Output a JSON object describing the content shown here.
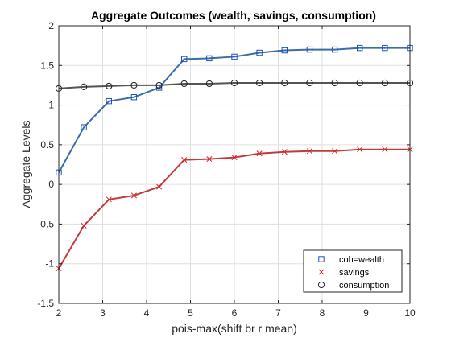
{
  "chart_data": {
    "type": "line",
    "title": "Aggregate Outcomes (wealth, savings, consumption)",
    "xlabel": "pois-max(shift br r mean)",
    "ylabel": "Aggregate Levels",
    "xlim": [
      2,
      10
    ],
    "ylim": [
      -1.5,
      2
    ],
    "xticks": [
      2,
      3,
      4,
      5,
      6,
      7,
      8,
      9,
      10
    ],
    "yticks": [
      -1.5,
      -1,
      -0.5,
      0,
      0.5,
      1,
      1.5,
      2
    ],
    "ytick_labels": [
      "-1.5",
      "-1",
      "-0.5",
      "0",
      "0.5",
      "1",
      "1.5",
      "2"
    ],
    "grid": true,
    "legend_position": "bottom-right",
    "x": [
      2,
      2.571,
      3.143,
      3.714,
      4.286,
      4.857,
      5.429,
      6,
      6.571,
      7.143,
      7.714,
      8.286,
      8.857,
      9.429,
      10
    ],
    "series": [
      {
        "name": "coh=wealth",
        "marker": "square",
        "line_color": "#3a6ea5",
        "marker_color": "#1f4fbf",
        "values": [
          0.15,
          0.72,
          1.05,
          1.1,
          1.22,
          1.58,
          1.59,
          1.61,
          1.66,
          1.69,
          1.7,
          1.7,
          1.72,
          1.72,
          1.72
        ]
      },
      {
        "name": "savings",
        "marker": "x",
        "line_color": "#c23b3b",
        "marker_color": "#d62728",
        "values": [
          -1.06,
          -0.52,
          -0.19,
          -0.14,
          -0.03,
          0.31,
          0.32,
          0.34,
          0.39,
          0.41,
          0.42,
          0.42,
          0.44,
          0.44,
          0.44
        ]
      },
      {
        "name": "consumption",
        "marker": "circle",
        "line_color": "#555555",
        "marker_color": "#222222",
        "values": [
          1.21,
          1.23,
          1.24,
          1.25,
          1.25,
          1.27,
          1.27,
          1.28,
          1.28,
          1.28,
          1.28,
          1.28,
          1.28,
          1.28,
          1.28
        ]
      }
    ]
  }
}
